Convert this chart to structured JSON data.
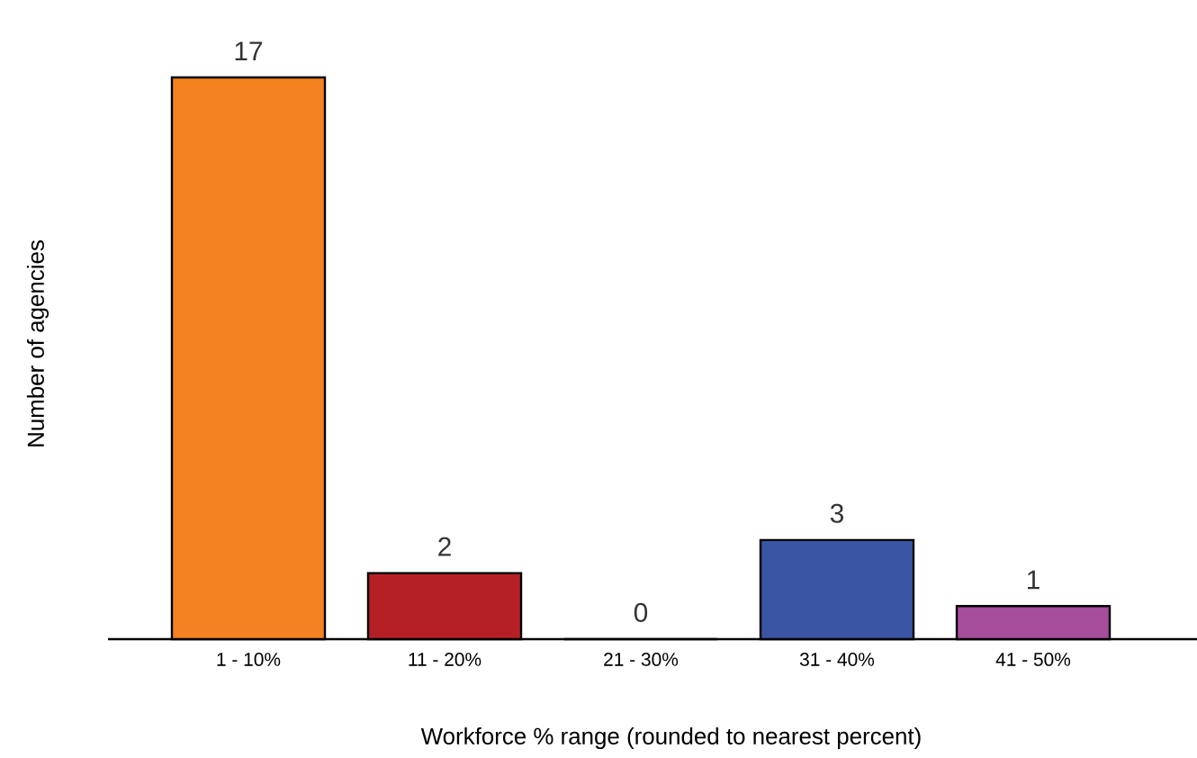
{
  "chart_data": {
    "type": "bar",
    "xlabel": "Workforce % range (rounded to nearest percent)",
    "ylabel": "Number of agencies",
    "categories": [
      "1 - 10%",
      "11 - 20%",
      "21 - 30%",
      "31 - 40%",
      "41 - 50%"
    ],
    "values": [
      17,
      2,
      0,
      3,
      1
    ],
    "colors": [
      "#f58220",
      "#b52025",
      "#808080",
      "#3a55a4",
      "#a64d9c"
    ],
    "data_labels": true
  }
}
